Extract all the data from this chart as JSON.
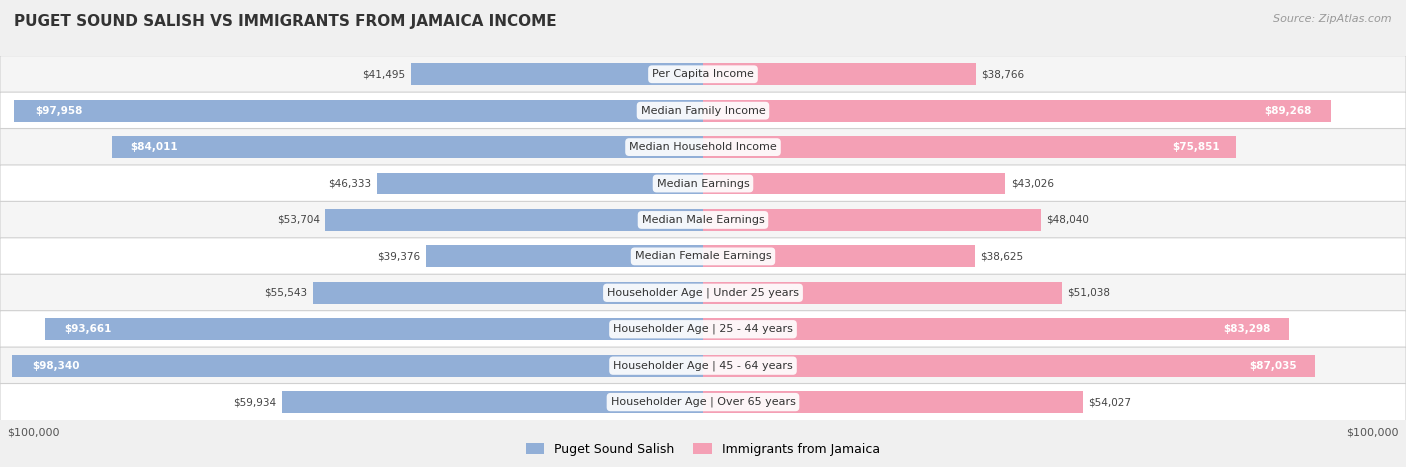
{
  "title": "PUGET SOUND SALISH VS IMMIGRANTS FROM JAMAICA INCOME",
  "source": "Source: ZipAtlas.com",
  "categories": [
    "Per Capita Income",
    "Median Family Income",
    "Median Household Income",
    "Median Earnings",
    "Median Male Earnings",
    "Median Female Earnings",
    "Householder Age | Under 25 years",
    "Householder Age | 25 - 44 years",
    "Householder Age | 45 - 64 years",
    "Householder Age | Over 65 years"
  ],
  "left_values": [
    41495,
    97958,
    84011,
    46333,
    53704,
    39376,
    55543,
    93661,
    98340,
    59934
  ],
  "right_values": [
    38766,
    89268,
    75851,
    43026,
    48040,
    38625,
    51038,
    83298,
    87035,
    54027
  ],
  "left_labels": [
    "$41,495",
    "$97,958",
    "$84,011",
    "$46,333",
    "$53,704",
    "$39,376",
    "$55,543",
    "$93,661",
    "$98,340",
    "$59,934"
  ],
  "right_labels": [
    "$38,766",
    "$89,268",
    "$75,851",
    "$43,026",
    "$48,040",
    "$38,625",
    "$51,038",
    "$83,298",
    "$87,035",
    "$54,027"
  ],
  "left_color": "#92afd7",
  "right_color": "#f4a0b5",
  "left_inside": [
    false,
    true,
    true,
    false,
    false,
    false,
    false,
    true,
    true,
    false
  ],
  "right_inside": [
    false,
    true,
    true,
    false,
    false,
    false,
    false,
    true,
    true,
    false
  ],
  "max_value": 100000,
  "legend_left": "Puget Sound Salish",
  "legend_right": "Immigrants from Jamaica",
  "bg_color": "#f0f0f0",
  "row_colors": [
    "#f0f0f0",
    "#ffffff"
  ]
}
